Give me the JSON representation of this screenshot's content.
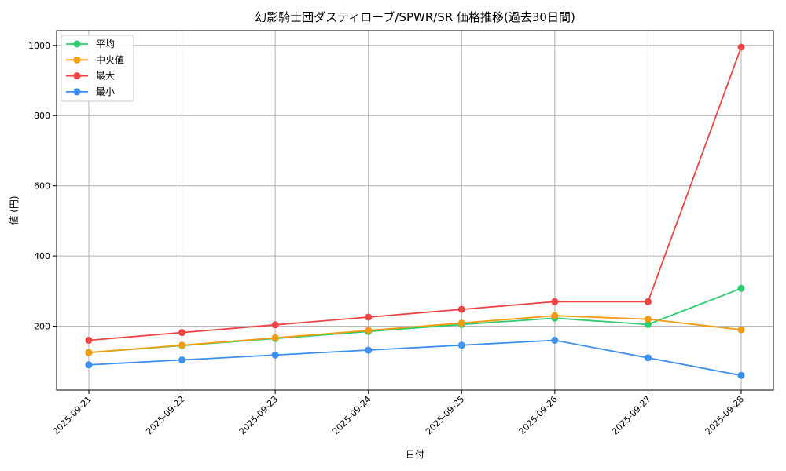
{
  "chart_data": {
    "type": "line",
    "title": "幻影騎士団ダスティローブ/SPWR/SR 価格推移(過去30日間)",
    "xlabel": "日付",
    "ylabel": "値 (円)",
    "categories": [
      "2025-09-21",
      "2025-09-22",
      "2025-09-23",
      "2025-09-24",
      "2025-09-25",
      "2025-09-26",
      "2025-09-27",
      "2025-09-28"
    ],
    "ylim": [
      18,
      1042
    ],
    "yticks": [
      200,
      400,
      600,
      800,
      1000
    ],
    "grid": true,
    "legend_position": "top-left",
    "series": [
      {
        "name": "平均",
        "color": "#2ecc71",
        "values": [
          125,
          145,
          165,
          185,
          205,
          223,
          205,
          308
        ]
      },
      {
        "name": "中央値",
        "color": "#f39c12",
        "values": [
          125,
          146,
          167,
          188,
          209,
          230,
          220,
          190
        ]
      },
      {
        "name": "最大",
        "color": "#ef4444",
        "values": [
          160,
          182,
          204,
          226,
          248,
          270,
          270,
          995
        ]
      },
      {
        "name": "最小",
        "color": "#3b8fef",
        "values": [
          90,
          104,
          118,
          132,
          146,
          160,
          110,
          60
        ]
      }
    ]
  }
}
